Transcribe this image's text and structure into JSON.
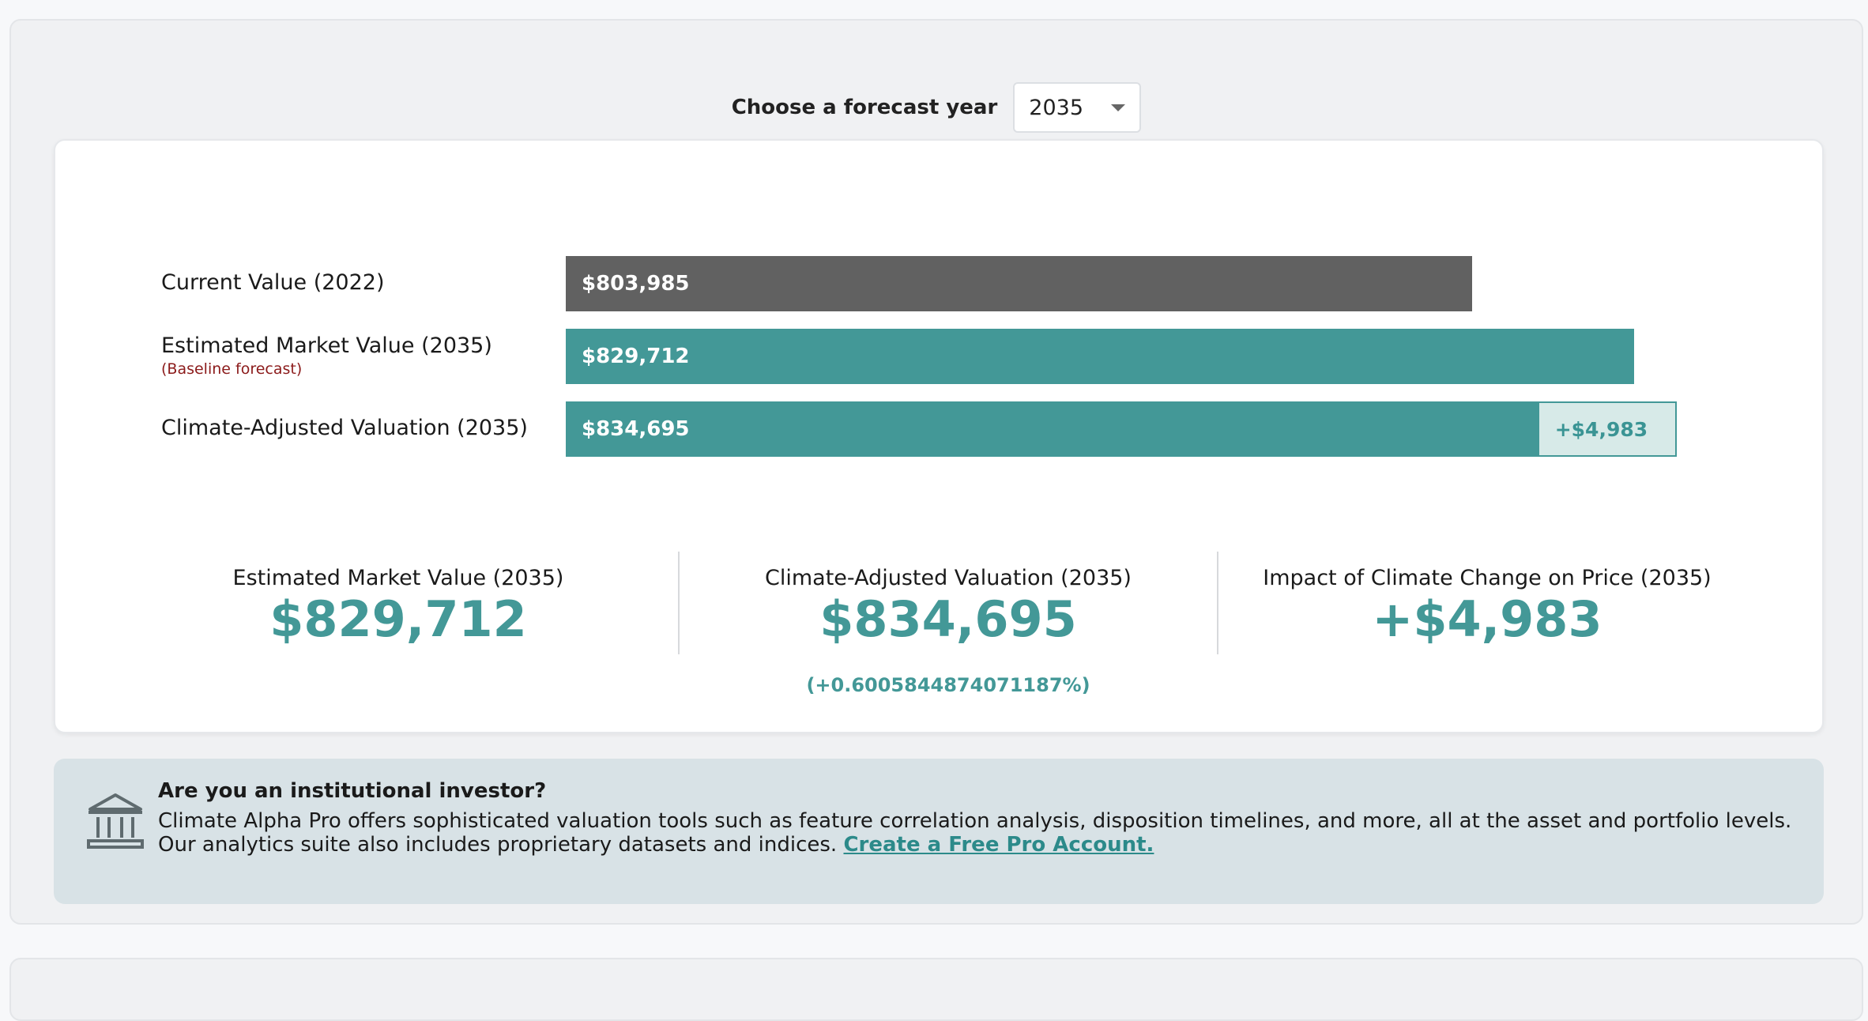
{
  "forecast": {
    "label": "Choose a forecast year",
    "selected_year": "2035"
  },
  "bars": {
    "current": {
      "label": "Current Value (2022)",
      "value_label": "$803,985"
    },
    "market": {
      "label": "Estimated Market Value (2035)",
      "sublabel": "(Baseline forecast)",
      "value_label": "$829,712"
    },
    "climate": {
      "label": "Climate-Adjusted Valuation (2035)",
      "value_label": "$834,695",
      "delta_label": "+$4,983"
    }
  },
  "chart_data": {
    "type": "bar",
    "orientation": "horizontal",
    "categories": [
      "Current Value (2022)",
      "Estimated Market Value (2035)",
      "Climate-Adjusted Valuation (2035)"
    ],
    "values": [
      803985,
      829712,
      834695
    ],
    "climate_delta": 4983
  },
  "stats": {
    "market": {
      "title": "Estimated Market Value (2035)",
      "value": "$829,712"
    },
    "climate": {
      "title": "Climate-Adjusted Valuation (2035)",
      "value": "$834,695",
      "pct": "(+0.6005844874071187%)"
    },
    "impact": {
      "title": "Impact of Climate Change on Price (2035)",
      "value": "+$4,983"
    }
  },
  "promo": {
    "title": "Are you an institutional investor?",
    "body": "Climate Alpha Pro offers sophisticated valuation tools such as feature correlation analysis, disposition timelines, and more, all at the asset and portfolio levels. Our analytics suite also includes proprietary datasets and indices.",
    "link": "Create a Free Pro Account."
  },
  "colors": {
    "teal": "#439897",
    "current_bar": "#616161",
    "delta_fill": "#d7eae8",
    "sublabel": "#8b1a1a",
    "promo_bg": "#d8e2e6"
  },
  "icons": {
    "promo": "institution-building-icon",
    "select": "caret-down-icon"
  }
}
